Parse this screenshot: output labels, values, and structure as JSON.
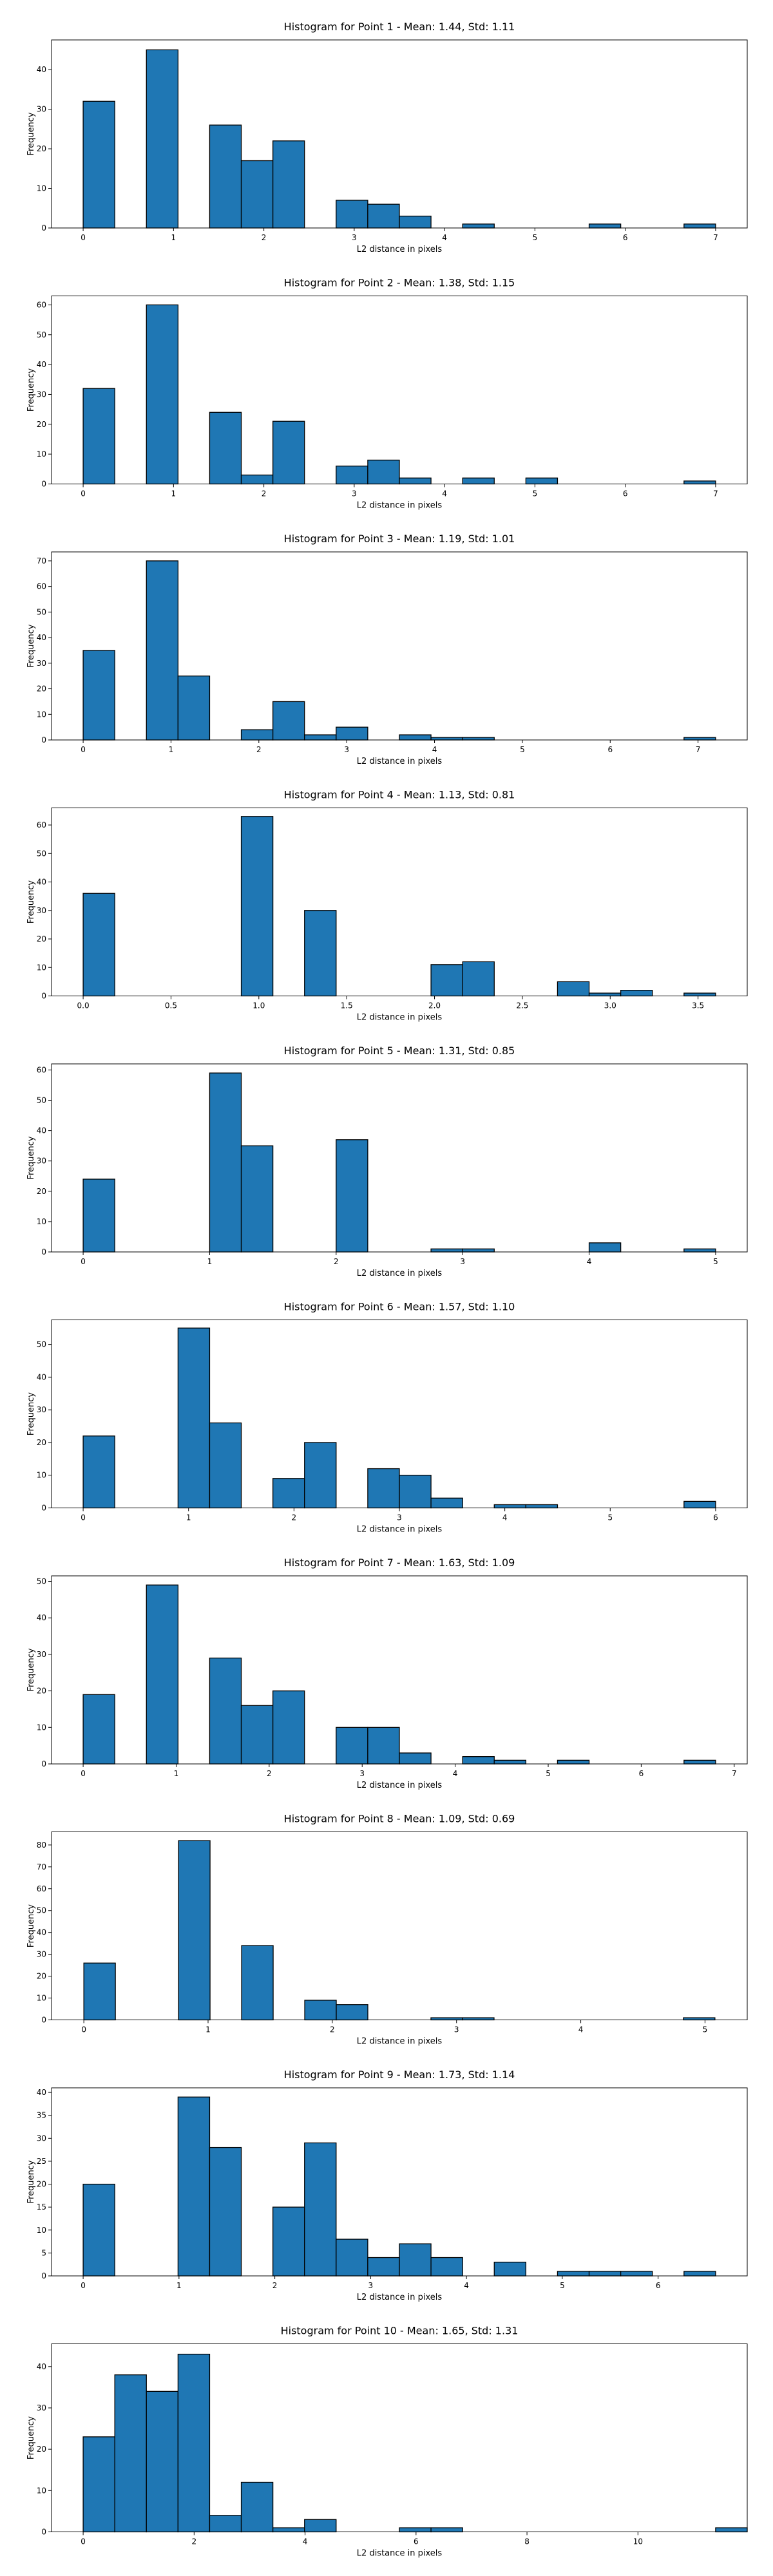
{
  "chart_data": [
    {
      "type": "bar",
      "title": "Histogram for Point 1 - Mean: 1.44, Std: 1.11",
      "xlabel": "L2 distance in pixels",
      "ylabel": "Frequency",
      "xlim": [
        -0.35,
        7.35
      ],
      "ylim": [
        0,
        47.5
      ],
      "xticks": [
        0,
        1,
        2,
        3,
        4,
        5,
        6,
        7
      ],
      "yticks": [
        0,
        10,
        20,
        30,
        40
      ],
      "bin_width": 0.35,
      "bins": [
        [
          0,
          32
        ],
        [
          0.7,
          45
        ],
        [
          1.4,
          26
        ],
        [
          1.75,
          17
        ],
        [
          2.1,
          22
        ],
        [
          2.8,
          7
        ],
        [
          3.15,
          6
        ],
        [
          3.5,
          3
        ],
        [
          4.2,
          1
        ],
        [
          5.6,
          1
        ],
        [
          6.65,
          1
        ]
      ]
    },
    {
      "type": "bar",
      "title": "Histogram for Point 2 - Mean: 1.38, Std: 1.15",
      "xlabel": "L2 distance in pixels",
      "ylabel": "Frequency",
      "xlim": [
        -0.35,
        7.35
      ],
      "ylim": [
        0,
        63
      ],
      "xticks": [
        0,
        1,
        2,
        3,
        4,
        5,
        6,
        7
      ],
      "yticks": [
        0,
        10,
        20,
        30,
        40,
        50,
        60
      ],
      "bin_width": 0.35,
      "bins": [
        [
          0,
          32
        ],
        [
          0.7,
          60
        ],
        [
          1.4,
          24
        ],
        [
          1.75,
          3
        ],
        [
          2.1,
          21
        ],
        [
          2.8,
          6
        ],
        [
          3.15,
          8
        ],
        [
          3.5,
          2
        ],
        [
          4.2,
          2
        ],
        [
          4.9,
          2
        ],
        [
          6.65,
          1
        ]
      ]
    },
    {
      "type": "bar",
      "title": "Histogram for Point 3 - Mean: 1.19, Std: 1.01",
      "xlabel": "L2 distance in pixels",
      "ylabel": "Frequency",
      "xlim": [
        -0.36,
        7.56
      ],
      "ylim": [
        0,
        73.5
      ],
      "xticks": [
        0,
        1,
        2,
        3,
        4,
        5,
        6,
        7
      ],
      "yticks": [
        0,
        10,
        20,
        30,
        40,
        50,
        60,
        70
      ],
      "bin_width": 0.36,
      "bins": [
        [
          0,
          35
        ],
        [
          0.72,
          70
        ],
        [
          1.08,
          25
        ],
        [
          1.8,
          4
        ],
        [
          2.16,
          15
        ],
        [
          2.52,
          2
        ],
        [
          2.88,
          5
        ],
        [
          3.6,
          2
        ],
        [
          3.96,
          1
        ],
        [
          4.32,
          1
        ],
        [
          6.84,
          1
        ]
      ]
    },
    {
      "type": "bar",
      "title": "Histogram for Point 4 - Mean: 1.13, Std: 0.81",
      "xlabel": "L2 distance in pixels",
      "ylabel": "Frequency",
      "xlim": [
        -0.18,
        3.78
      ],
      "ylim": [
        0,
        66
      ],
      "xticks": [
        0.0,
        0.5,
        1.0,
        1.5,
        2.0,
        2.5,
        3.0,
        3.5
      ],
      "xtick_labels": [
        "0.0",
        "0.5",
        "1.0",
        "1.5",
        "2.0",
        "2.5",
        "3.0",
        "3.5"
      ],
      "yticks": [
        0,
        10,
        20,
        30,
        40,
        50,
        60
      ],
      "bin_width": 0.18,
      "bins": [
        [
          0,
          36
        ],
        [
          0.9,
          63
        ],
        [
          1.26,
          30
        ],
        [
          1.98,
          11
        ],
        [
          2.16,
          12
        ],
        [
          2.7,
          5
        ],
        [
          2.88,
          1
        ],
        [
          3.06,
          2
        ],
        [
          3.42,
          1
        ]
      ]
    },
    {
      "type": "bar",
      "title": "Histogram for Point 5 - Mean: 1.31, Std: 0.85",
      "xlabel": "L2 distance in pixels",
      "ylabel": "Frequency",
      "xlim": [
        -0.25,
        5.25
      ],
      "ylim": [
        0,
        62
      ],
      "xticks": [
        0,
        1,
        2,
        3,
        4,
        5
      ],
      "yticks": [
        0,
        10,
        20,
        30,
        40,
        50,
        60
      ],
      "bin_width": 0.25,
      "bins": [
        [
          0,
          24
        ],
        [
          1.0,
          59
        ],
        [
          1.25,
          35
        ],
        [
          2.0,
          37
        ],
        [
          2.75,
          1
        ],
        [
          3.0,
          1
        ],
        [
          4.0,
          3
        ],
        [
          4.75,
          1
        ]
      ]
    },
    {
      "type": "bar",
      "title": "Histogram for Point 6 - Mean: 1.57, Std: 1.10",
      "xlabel": "L2 distance in pixels",
      "ylabel": "Frequency",
      "xlim": [
        -0.3,
        6.3
      ],
      "ylim": [
        0,
        57.5
      ],
      "xticks": [
        0,
        1,
        2,
        3,
        4,
        5,
        6
      ],
      "yticks": [
        0,
        10,
        20,
        30,
        40,
        50
      ],
      "bin_width": 0.3,
      "bins": [
        [
          0,
          22
        ],
        [
          0.9,
          55
        ],
        [
          1.2,
          26
        ],
        [
          1.8,
          9
        ],
        [
          2.1,
          20
        ],
        [
          2.7,
          12
        ],
        [
          3.0,
          10
        ],
        [
          3.3,
          3
        ],
        [
          3.9,
          1
        ],
        [
          4.2,
          1
        ],
        [
          5.7,
          2
        ]
      ]
    },
    {
      "type": "bar",
      "title": "Histogram for Point 7 - Mean: 1.63, Std: 1.09",
      "xlabel": "L2 distance in pixels",
      "ylabel": "Frequency",
      "xlim": [
        -0.34,
        7.14
      ],
      "ylim": [
        0,
        51.5
      ],
      "xticks": [
        0,
        1,
        2,
        3,
        4,
        5,
        6,
        7
      ],
      "yticks": [
        0,
        10,
        20,
        30,
        40,
        50
      ],
      "bin_width": 0.34,
      "bins": [
        [
          0,
          19
        ],
        [
          0.68,
          49
        ],
        [
          1.36,
          29
        ],
        [
          1.7,
          16
        ],
        [
          2.04,
          20
        ],
        [
          2.72,
          10
        ],
        [
          3.06,
          10
        ],
        [
          3.4,
          3
        ],
        [
          4.08,
          2
        ],
        [
          4.42,
          1
        ],
        [
          5.1,
          1
        ],
        [
          6.46,
          1
        ]
      ]
    },
    {
      "type": "bar",
      "title": "Histogram for Point 8 - Mean: 1.09, Std: 0.69",
      "xlabel": "L2 distance in pixels",
      "ylabel": "Frequency",
      "xlim": [
        -0.26,
        5.34
      ],
      "ylim": [
        0,
        86
      ],
      "xticks": [
        0,
        1,
        2,
        3,
        4,
        5
      ],
      "yticks": [
        0,
        10,
        20,
        30,
        40,
        50,
        60,
        70,
        80
      ],
      "bin_width": 0.254,
      "bins": [
        [
          0,
          26
        ],
        [
          0.762,
          82
        ],
        [
          1.27,
          34
        ],
        [
          1.778,
          9
        ],
        [
          2.032,
          7
        ],
        [
          2.794,
          1
        ],
        [
          3.048,
          1
        ],
        [
          4.826,
          1
        ]
      ]
    },
    {
      "type": "bar",
      "title": "Histogram for Point 9 - Mean: 1.73, Std: 1.14",
      "xlabel": "L2 distance in pixels",
      "ylabel": "Frequency",
      "xlim": [
        -0.33,
        6.93
      ],
      "ylim": [
        0,
        41
      ],
      "xticks": [
        0,
        1,
        2,
        3,
        4,
        5,
        6
      ],
      "yticks": [
        0,
        5,
        10,
        15,
        20,
        25,
        30,
        35,
        40
      ],
      "bin_width": 0.33,
      "bins": [
        [
          0,
          20
        ],
        [
          0.99,
          39
        ],
        [
          1.32,
          28
        ],
        [
          1.98,
          15
        ],
        [
          2.31,
          29
        ],
        [
          2.64,
          8
        ],
        [
          2.97,
          4
        ],
        [
          3.3,
          7
        ],
        [
          3.63,
          4
        ],
        [
          4.29,
          3
        ],
        [
          4.95,
          1
        ],
        [
          5.28,
          1
        ],
        [
          5.61,
          1
        ],
        [
          6.27,
          1
        ]
      ]
    },
    {
      "type": "bar",
      "title": "Histogram for Point 10 - Mean: 1.65, Std: 1.31",
      "xlabel": "L2 distance in pixels",
      "ylabel": "Frequency",
      "xlim": [
        -0.57,
        11.97
      ],
      "ylim": [
        0,
        45.5
      ],
      "xticks": [
        0,
        2,
        4,
        6,
        8,
        10
      ],
      "yticks": [
        0,
        10,
        20,
        30,
        40
      ],
      "bin_width": 0.57,
      "bins": [
        [
          0,
          23
        ],
        [
          0.57,
          38
        ],
        [
          1.14,
          34
        ],
        [
          1.71,
          43
        ],
        [
          2.28,
          4
        ],
        [
          2.85,
          12
        ],
        [
          3.42,
          1
        ],
        [
          3.99,
          3
        ],
        [
          5.7,
          1
        ],
        [
          6.27,
          1
        ],
        [
          11.4,
          1
        ]
      ]
    }
  ]
}
